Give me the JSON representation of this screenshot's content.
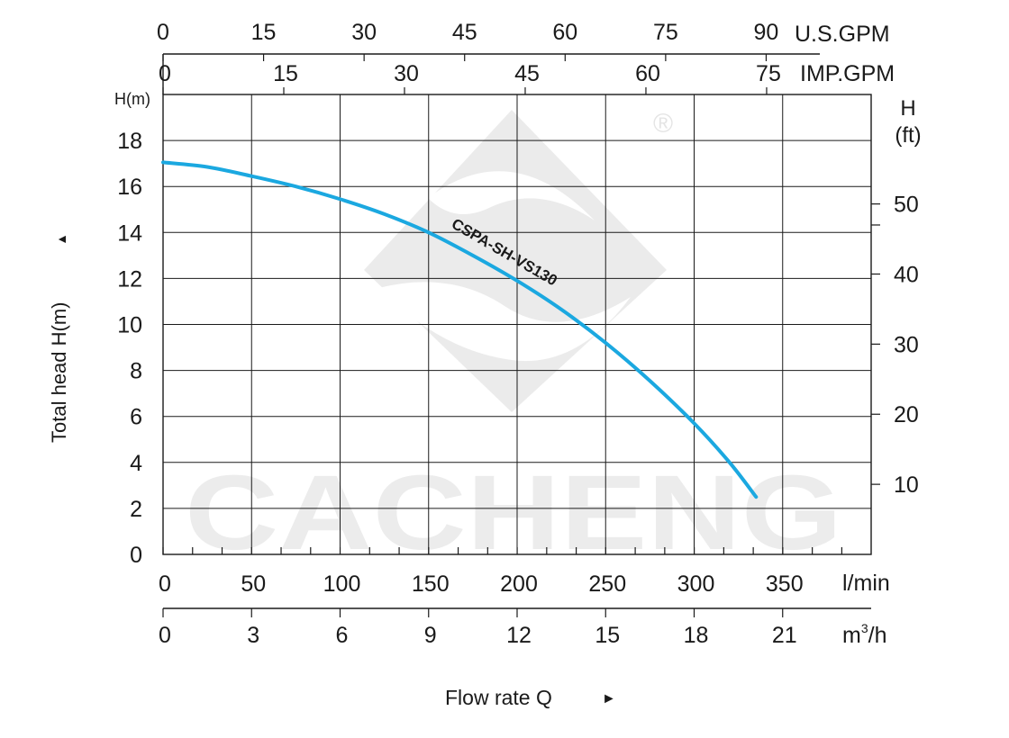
{
  "chart_data": {
    "type": "line",
    "watermark": {
      "brand": "CACHENG",
      "mark": "®"
    },
    "y_axis_left": {
      "label": "Total  head H(m)",
      "arrow": "▲",
      "unit": "H(m)",
      "ticks": [
        "0",
        "2",
        "4",
        "6",
        "8",
        "10",
        "12",
        "14",
        "16",
        "18"
      ],
      "range": [
        0,
        20
      ]
    },
    "y_axis_right": {
      "unit_top": "H",
      "unit_bottom": "(ft)",
      "ticks": [
        "10",
        "20",
        "30",
        "40",
        "50"
      ]
    },
    "x_axis_lpm": {
      "unit": "l/min",
      "ticks": [
        "0",
        "50",
        "100",
        "150",
        "200",
        "250",
        "300",
        "350"
      ],
      "range": [
        0,
        400
      ]
    },
    "x_axis_m3h": {
      "unit_base": "m",
      "unit_sup": "3",
      "unit_tail": "/h",
      "ticks": [
        "0",
        "3",
        "6",
        "9",
        "12",
        "15",
        "18",
        "21"
      ]
    },
    "x_axis_usgpm": {
      "unit": "U.S.GPM",
      "ticks": [
        "0",
        "15",
        "30",
        "45",
        "60",
        "75",
        "90"
      ]
    },
    "x_axis_impgpm": {
      "unit": "IMP.GPM",
      "ticks": [
        "0",
        "15",
        "30",
        "45",
        "60",
        "75"
      ]
    },
    "xlabel": "Flow rate  Q",
    "xlabel_arrow": "►",
    "series": [
      {
        "name": "CSPA-SH-VS130",
        "color": "#1ba8e0",
        "points": [
          {
            "x": 0,
            "y": 17.05
          },
          {
            "x": 25,
            "y": 16.85
          },
          {
            "x": 50,
            "y": 16.45
          },
          {
            "x": 75,
            "y": 16.0
          },
          {
            "x": 100,
            "y": 15.45
          },
          {
            "x": 125,
            "y": 14.8
          },
          {
            "x": 150,
            "y": 14.0
          },
          {
            "x": 175,
            "y": 13.0
          },
          {
            "x": 200,
            "y": 11.9
          },
          {
            "x": 225,
            "y": 10.65
          },
          {
            "x": 250,
            "y": 9.2
          },
          {
            "x": 275,
            "y": 7.55
          },
          {
            "x": 300,
            "y": 5.7
          },
          {
            "x": 320,
            "y": 4.0
          },
          {
            "x": 335,
            "y": 2.5
          }
        ]
      }
    ]
  }
}
